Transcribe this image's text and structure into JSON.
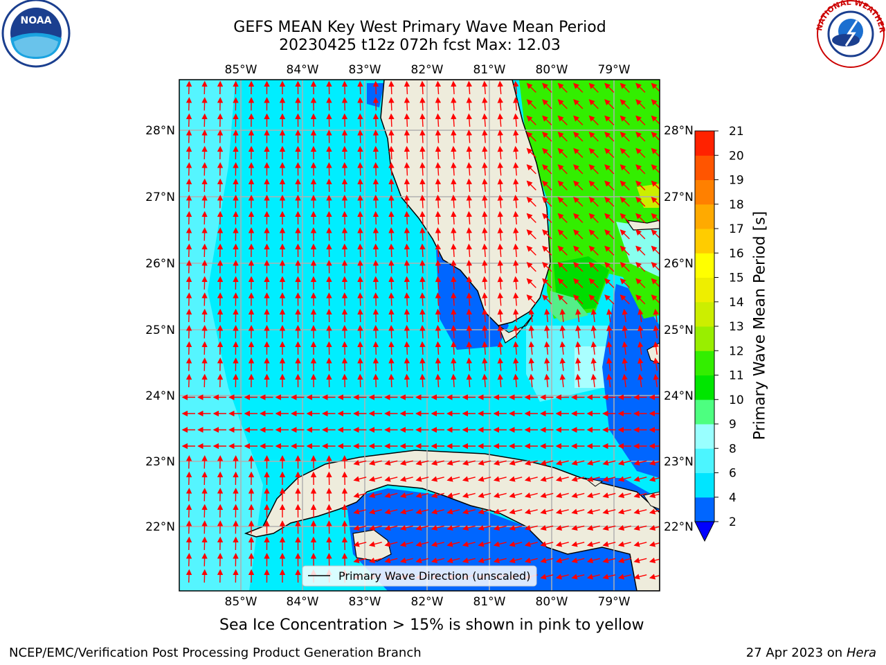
{
  "title": {
    "line1": "GEFS MEAN Key West Primary Wave Mean Period",
    "line2": "20230425 t12z 072h fcst   Max: 12.03"
  },
  "logos": {
    "left": {
      "icon": "noaa-logo",
      "text": "NOAA"
    },
    "right": {
      "icon": "nws-logo",
      "text": "NATIONAL WEATHER SERVICE"
    }
  },
  "map": {
    "lon_labels": [
      "85°W",
      "84°W",
      "83°W",
      "82°W",
      "81°W",
      "80°W",
      "79°W"
    ],
    "lat_labels": [
      "28°N",
      "27°N",
      "26°N",
      "25°N",
      "24°N",
      "23°N",
      "22°N"
    ],
    "land_color": "#eeecdc",
    "grid_color": "#b0b0b0",
    "arrow_color": "#ff0000",
    "legend_label": "Primary Wave Direction (unscaled)"
  },
  "colorbar": {
    "label": "Primary Wave Mean Period [s]",
    "ticks": [
      "2",
      "4",
      "6",
      "8",
      "9",
      "10",
      "11",
      "12",
      "13",
      "14",
      "15",
      "16",
      "17",
      "18",
      "19",
      "20",
      "21"
    ],
    "colors": [
      "#0066ff",
      "#00e5ff",
      "#4cf5ff",
      "#99ffff",
      "#4dff80",
      "#00e600",
      "#33ee00",
      "#99ee00",
      "#ccee00",
      "#eeee00",
      "#ffff00",
      "#ffcc00",
      "#ffaa00",
      "#ff8000",
      "#ff5500",
      "#ff2200",
      "#ff0000"
    ],
    "under_color": "#0000ff"
  },
  "notes": {
    "sea_ice": "Sea Ice Concentration > 15% is shown in pink to yellow",
    "footer_left": "NCEP/EMC/Verification Post Processing Product Generation Branch",
    "footer_date": "27 Apr 2023 on ",
    "footer_host": "Hera"
  }
}
